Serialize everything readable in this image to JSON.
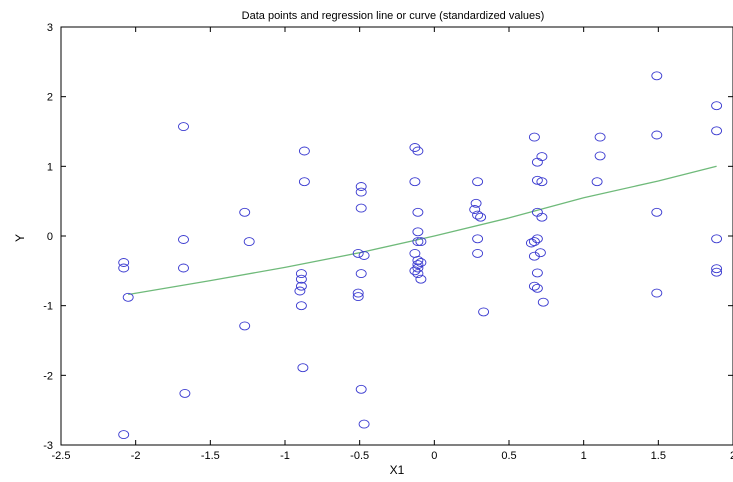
{
  "chart_data": {
    "type": "scatter",
    "title": "Data points and regression line or curve (standardized values)",
    "xlabel": "X1",
    "ylabel": "Y",
    "xlim": [
      -2.5,
      2
    ],
    "ylim": [
      -3,
      3
    ],
    "xticks": [
      -2.5,
      -2,
      -1.5,
      -1,
      -0.5,
      0,
      0.5,
      1,
      1.5,
      2
    ],
    "xtick_labels": [
      "-2.5",
      "-2",
      "-1.5",
      "-1",
      "-0.5",
      "0",
      "0.5",
      "1",
      "1.5",
      "2"
    ],
    "yticks": [
      -3,
      -2,
      -1,
      0,
      1,
      2,
      3
    ],
    "ytick_labels": [
      "-3",
      "-2",
      "-1",
      "0",
      "1",
      "2",
      "3"
    ],
    "grid": false,
    "colors": {
      "points": "#3b3bd0",
      "curve": "#6fba7a",
      "axes": "#000000"
    },
    "points": [
      {
        "x": -2.08,
        "y": -0.38
      },
      {
        "x": -2.08,
        "y": -0.46
      },
      {
        "x": -2.05,
        "y": -0.88
      },
      {
        "x": -2.08,
        "y": -2.85
      },
      {
        "x": -1.68,
        "y": 1.57
      },
      {
        "x": -1.68,
        "y": -0.05
      },
      {
        "x": -1.68,
        "y": -0.46
      },
      {
        "x": -1.67,
        "y": -2.26
      },
      {
        "x": -1.27,
        "y": 0.34
      },
      {
        "x": -1.24,
        "y": -0.08
      },
      {
        "x": -1.27,
        "y": -1.29
      },
      {
        "x": -0.87,
        "y": 1.22
      },
      {
        "x": -0.87,
        "y": 0.78
      },
      {
        "x": -0.89,
        "y": -0.54
      },
      {
        "x": -0.89,
        "y": -0.62
      },
      {
        "x": -0.89,
        "y": -0.72
      },
      {
        "x": -0.9,
        "y": -0.79
      },
      {
        "x": -0.89,
        "y": -1.0
      },
      {
        "x": -0.88,
        "y": -1.89
      },
      {
        "x": -0.49,
        "y": 0.71
      },
      {
        "x": -0.49,
        "y": 0.63
      },
      {
        "x": -0.49,
        "y": 0.4
      },
      {
        "x": -0.51,
        "y": -0.25
      },
      {
        "x": -0.47,
        "y": -0.28
      },
      {
        "x": -0.49,
        "y": -0.54
      },
      {
        "x": -0.51,
        "y": -0.82
      },
      {
        "x": -0.51,
        "y": -0.87
      },
      {
        "x": -0.49,
        "y": -2.2
      },
      {
        "x": -0.47,
        "y": -2.7
      },
      {
        "x": -0.13,
        "y": 1.27
      },
      {
        "x": -0.11,
        "y": 1.22
      },
      {
        "x": -0.13,
        "y": 0.78
      },
      {
        "x": -0.11,
        "y": 0.34
      },
      {
        "x": -0.11,
        "y": 0.06
      },
      {
        "x": -0.11,
        "y": -0.08
      },
      {
        "x": -0.09,
        "y": -0.08
      },
      {
        "x": -0.13,
        "y": -0.25
      },
      {
        "x": -0.11,
        "y": -0.35
      },
      {
        "x": -0.09,
        "y": -0.38
      },
      {
        "x": -0.11,
        "y": -0.41
      },
      {
        "x": -0.11,
        "y": -0.46
      },
      {
        "x": -0.13,
        "y": -0.5
      },
      {
        "x": -0.11,
        "y": -0.54
      },
      {
        "x": -0.09,
        "y": -0.62
      },
      {
        "x": 0.29,
        "y": 0.78
      },
      {
        "x": 0.28,
        "y": 0.47
      },
      {
        "x": 0.27,
        "y": 0.38
      },
      {
        "x": 0.29,
        "y": 0.3
      },
      {
        "x": 0.31,
        "y": 0.27
      },
      {
        "x": 0.29,
        "y": -0.04
      },
      {
        "x": 0.29,
        "y": -0.25
      },
      {
        "x": 0.33,
        "y": -1.09
      },
      {
        "x": 0.67,
        "y": 1.42
      },
      {
        "x": 0.72,
        "y": 1.14
      },
      {
        "x": 0.69,
        "y": 1.06
      },
      {
        "x": 0.69,
        "y": 0.8
      },
      {
        "x": 0.72,
        "y": 0.78
      },
      {
        "x": 0.69,
        "y": 0.34
      },
      {
        "x": 0.72,
        "y": 0.27
      },
      {
        "x": 0.69,
        "y": -0.04
      },
      {
        "x": 0.67,
        "y": -0.08
      },
      {
        "x": 0.65,
        "y": -0.1
      },
      {
        "x": 0.71,
        "y": -0.24
      },
      {
        "x": 0.67,
        "y": -0.29
      },
      {
        "x": 0.69,
        "y": -0.53
      },
      {
        "x": 0.67,
        "y": -0.72
      },
      {
        "x": 0.69,
        "y": -0.75
      },
      {
        "x": 0.73,
        "y": -0.95
      },
      {
        "x": 1.11,
        "y": 1.42
      },
      {
        "x": 1.11,
        "y": 1.15
      },
      {
        "x": 1.09,
        "y": 0.78
      },
      {
        "x": 1.49,
        "y": 2.3
      },
      {
        "x": 1.49,
        "y": 1.45
      },
      {
        "x": 1.49,
        "y": 0.34
      },
      {
        "x": 1.49,
        "y": -0.82
      },
      {
        "x": 1.89,
        "y": 1.87
      },
      {
        "x": 1.89,
        "y": 1.51
      },
      {
        "x": 1.89,
        "y": -0.04
      },
      {
        "x": 1.89,
        "y": -0.47
      },
      {
        "x": 1.89,
        "y": -0.52
      }
    ],
    "curve": [
      {
        "x": -2.05,
        "y": -0.84
      },
      {
        "x": -1.5,
        "y": -0.64
      },
      {
        "x": -1.0,
        "y": -0.45
      },
      {
        "x": -0.5,
        "y": -0.24
      },
      {
        "x": 0.0,
        "y": 0.0
      },
      {
        "x": 0.5,
        "y": 0.26
      },
      {
        "x": 1.0,
        "y": 0.55
      },
      {
        "x": 1.5,
        "y": 0.79
      },
      {
        "x": 1.89,
        "y": 1.0
      }
    ]
  }
}
